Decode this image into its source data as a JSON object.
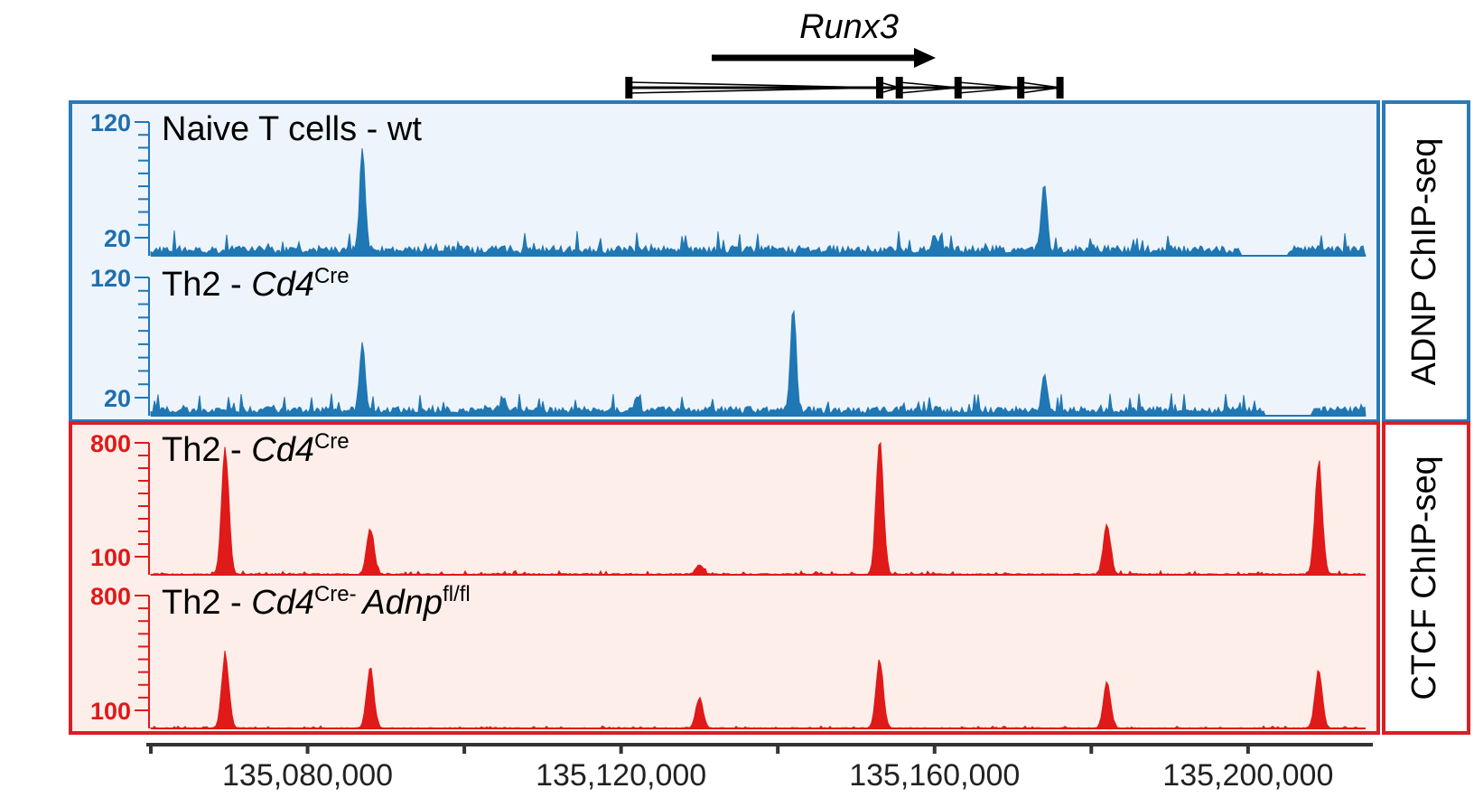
{
  "gene": {
    "name": "Runx3"
  },
  "colors": {
    "adnp": "#1f77b4",
    "adnp_bg": "#eef4fb",
    "adnp_frame": "#2a7ab8",
    "ctcf": "#e01919",
    "ctcf_bg": "#fdeee9",
    "ctcf_frame": "#d81f26"
  },
  "groups": [
    {
      "id": "adnp",
      "label": "ADNP ChIP-seq"
    },
    {
      "id": "ctcf",
      "label": "CTCF ChIP-seq"
    }
  ],
  "tracks": [
    {
      "group": "adnp",
      "label": {
        "main": "Naive T cells - wt",
        "italic": "",
        "sup": "",
        "italic2": "",
        "sup2": ""
      },
      "ticks": {
        "top": "120",
        "bottom": "20"
      },
      "ymax": 120,
      "baseline_noise": 6,
      "noise_seed": 11,
      "peaks": [
        {
          "x": 135087000,
          "h": 95
        },
        {
          "x": 135174000,
          "h": 65
        },
        {
          "x": 135160000,
          "h": 12
        },
        {
          "x": 135180000,
          "h": 8
        }
      ]
    },
    {
      "group": "adnp",
      "label": {
        "main": "Th2 - ",
        "italic": "Cd4",
        "sup": "Cre",
        "italic2": "",
        "sup2": ""
      },
      "ticks": {
        "top": "120",
        "bottom": "20"
      },
      "ymax": 120,
      "baseline_noise": 5,
      "noise_seed": 29,
      "peaks": [
        {
          "x": 135087000,
          "h": 60
        },
        {
          "x": 135142000,
          "h": 95
        },
        {
          "x": 135174000,
          "h": 30
        },
        {
          "x": 135122000,
          "h": 12
        },
        {
          "x": 135105000,
          "h": 12
        }
      ]
    },
    {
      "group": "ctcf",
      "label": {
        "main": "Th2 - ",
        "italic": "Cd4",
        "sup": "Cre",
        "italic2": "",
        "sup2": ""
      },
      "ticks": {
        "top": "800",
        "bottom": "100"
      },
      "ymax": 800,
      "baseline_noise": 8,
      "noise_seed": 41,
      "peaks": [
        {
          "x": 135069500,
          "h": 780
        },
        {
          "x": 135088000,
          "h": 300
        },
        {
          "x": 135130000,
          "h": 60
        },
        {
          "x": 135153000,
          "h": 840
        },
        {
          "x": 135182000,
          "h": 320
        },
        {
          "x": 135209000,
          "h": 720
        }
      ]
    },
    {
      "group": "ctcf",
      "label": {
        "main": "Th2 - ",
        "italic": "Cd4",
        "sup": "Cre- ",
        "italic2": "Adnp",
        "sup2": "fl/fl"
      },
      "ticks": {
        "top": "800",
        "bottom": "100"
      },
      "ymax": 800,
      "baseline_noise": 5,
      "noise_seed": 53,
      "peaks": [
        {
          "x": 135069500,
          "h": 470
        },
        {
          "x": 135088000,
          "h": 380
        },
        {
          "x": 135130000,
          "h": 190
        },
        {
          "x": 135153000,
          "h": 430
        },
        {
          "x": 135182000,
          "h": 280
        },
        {
          "x": 135209000,
          "h": 360
        }
      ]
    }
  ],
  "chart_data": {
    "type": "area",
    "title": "",
    "xlabel": "",
    "ylabel": "",
    "xlim": [
      135060000,
      135215000
    ],
    "x_ticks": [
      135080000,
      135120000,
      135160000,
      135200000
    ],
    "x_tick_labels": [
      "135,080,000",
      "135,120,000",
      "135,160,000",
      "135,200,000"
    ],
    "minor_ticks": [
      135060000,
      135100000,
      135140000,
      135180000
    ],
    "gene_model": {
      "name": "Runx3",
      "strand": "+",
      "start": 135121000,
      "end": 135176000,
      "exons": [
        135121000,
        135153000,
        135155500,
        135163000,
        135171000,
        135176000
      ]
    },
    "series": [
      {
        "name": "Naive T cells - wt",
        "group": "ADNP ChIP-seq",
        "peaks_x": [
          135087000,
          135174000
        ],
        "peaks_y": [
          95,
          65
        ]
      },
      {
        "name": "Th2 - Cd4Cre",
        "group": "ADNP ChIP-seq",
        "peaks_x": [
          135087000,
          135142000,
          135174000
        ],
        "peaks_y": [
          60,
          95,
          30
        ]
      },
      {
        "name": "Th2 - Cd4Cre",
        "group": "CTCF ChIP-seq",
        "peaks_x": [
          135069500,
          135088000,
          135130000,
          135153000,
          135182000,
          135209000
        ],
        "peaks_y": [
          780,
          300,
          60,
          840,
          320,
          720
        ]
      },
      {
        "name": "Th2 - Cd4Cre- Adnpfl/fl",
        "group": "CTCF ChIP-seq",
        "peaks_x": [
          135069500,
          135088000,
          135130000,
          135153000,
          135182000,
          135209000
        ],
        "peaks_y": [
          470,
          380,
          190,
          430,
          280,
          360
        ]
      }
    ]
  }
}
